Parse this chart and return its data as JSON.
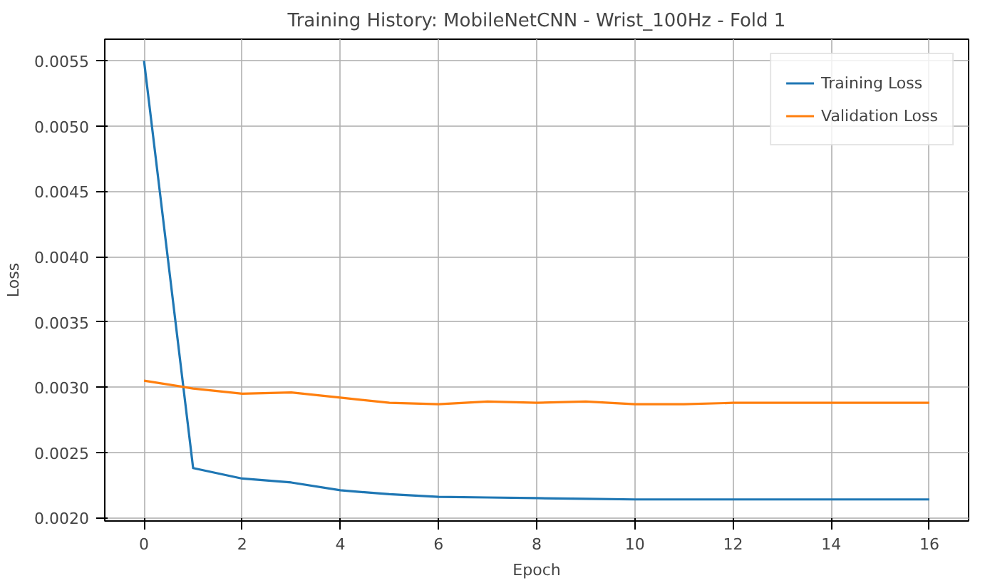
{
  "chart_data": {
    "type": "line",
    "title": "Training History: MobileNetCNN - Wrist_100Hz - Fold 1",
    "xlabel": "Epoch",
    "ylabel": "Loss",
    "x": [
      0,
      1,
      2,
      3,
      4,
      5,
      6,
      7,
      8,
      9,
      10,
      11,
      12,
      13,
      14,
      15,
      16
    ],
    "series": [
      {
        "name": "Training Loss",
        "color": "#1f77b4",
        "values": [
          0.0055,
          0.00238,
          0.0023,
          0.00227,
          0.00221,
          0.00218,
          0.00216,
          0.002155,
          0.00215,
          0.002145,
          0.00214,
          0.00214,
          0.00214,
          0.00214,
          0.00214,
          0.00214,
          0.00214
        ]
      },
      {
        "name": "Validation Loss",
        "color": "#ff7f0e",
        "values": [
          0.00305,
          0.00299,
          0.00295,
          0.00296,
          0.00292,
          0.00288,
          0.00287,
          0.00289,
          0.00288,
          0.00289,
          0.00287,
          0.00287,
          0.00288,
          0.00288,
          0.00288,
          0.00288,
          0.00288
        ]
      }
    ],
    "xlim": [
      -0.8,
      16.8
    ],
    "ylim": [
      0.001975,
      0.005665
    ],
    "xticks": [
      0,
      2,
      4,
      6,
      8,
      10,
      12,
      14,
      16
    ],
    "yticks": [
      {
        "value": 0.002,
        "label": "0.0020"
      },
      {
        "value": 0.0025,
        "label": "0.0025"
      },
      {
        "value": 0.003,
        "label": "0.0030"
      },
      {
        "value": 0.0035,
        "label": "0.0035"
      },
      {
        "value": 0.004,
        "label": "0.0040"
      },
      {
        "value": 0.0045,
        "label": "0.0045"
      },
      {
        "value": 0.005,
        "label": "0.0050"
      },
      {
        "value": 0.0055,
        "label": "0.0055"
      }
    ],
    "grid": true,
    "legend": "top right"
  }
}
